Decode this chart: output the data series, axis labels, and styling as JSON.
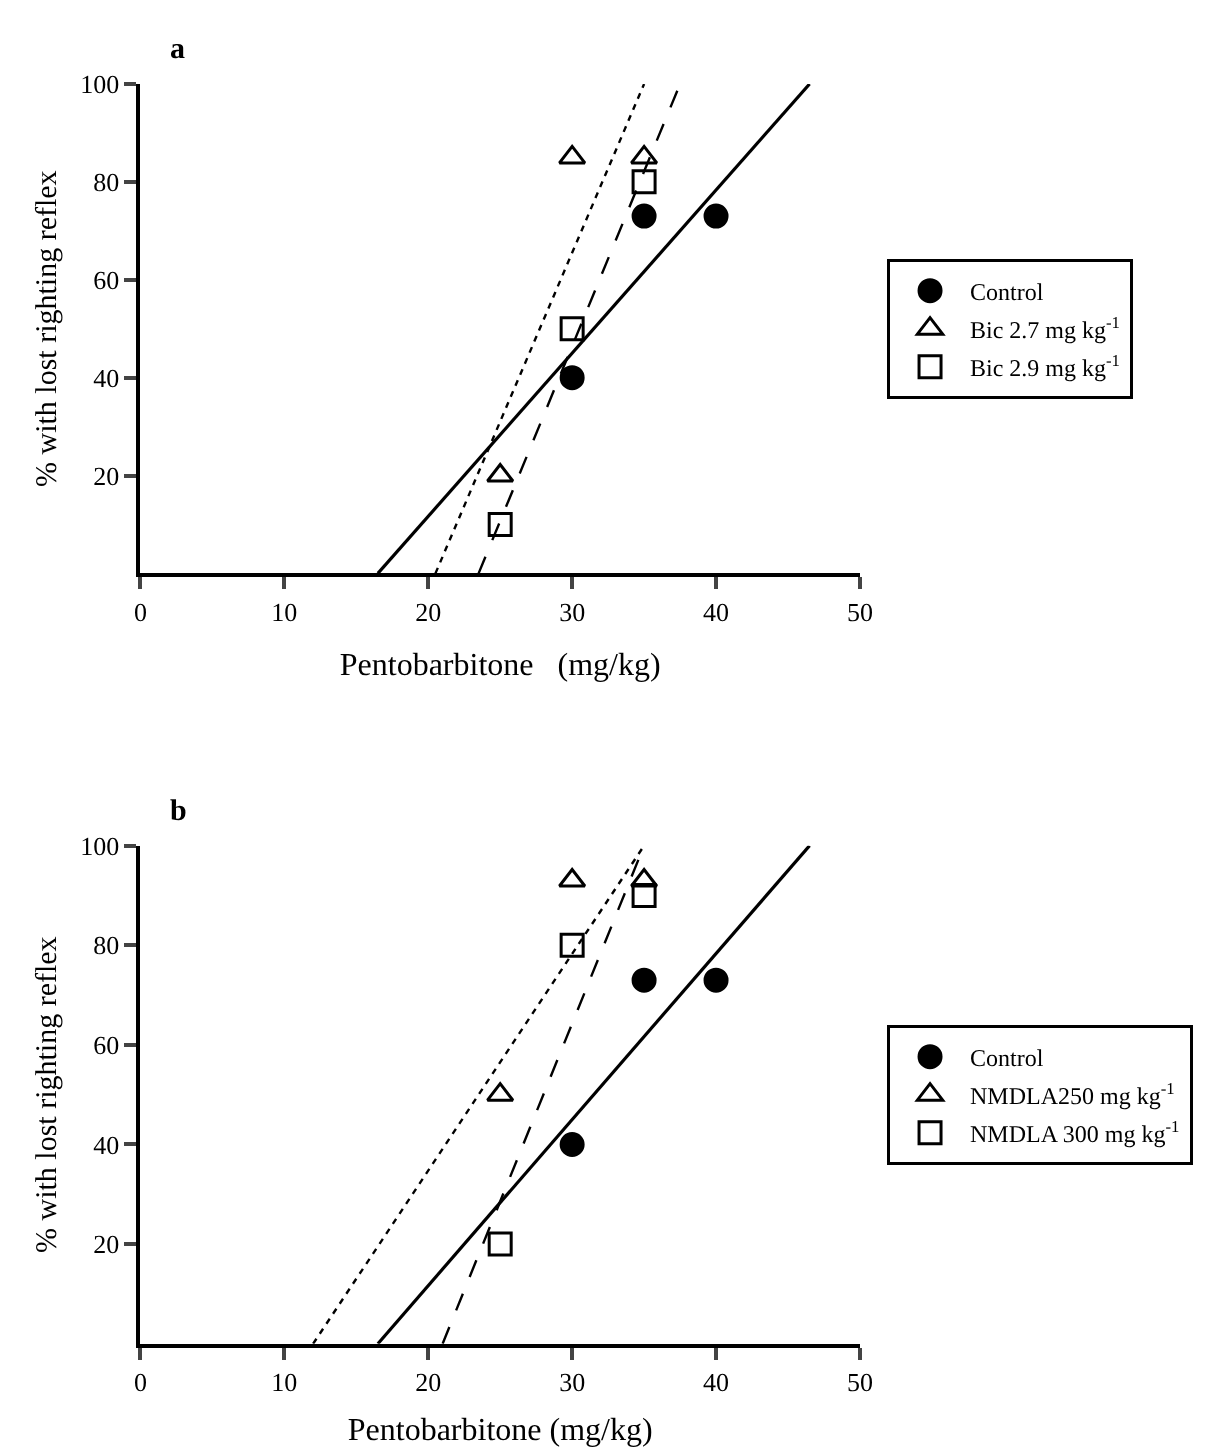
{
  "chart_data": [
    {
      "type": "scatter",
      "title": "a",
      "xlabel": "Pentobarbitone   (mg/kg)",
      "ylabel": "% with lost righting reflex",
      "xlim": [
        0,
        50
      ],
      "ylim": [
        0,
        100
      ],
      "xticks": [
        0,
        10,
        20,
        30,
        40,
        50
      ],
      "yticks": [
        20,
        40,
        60,
        80,
        100
      ],
      "grid": false,
      "legend": "right",
      "series": [
        {
          "type": "line",
          "color": "#000000",
          "marker": "none",
          "line_style": "solid",
          "x": [
            16.5,
            46.5
          ],
          "values": [
            0,
            100
          ]
        },
        {
          "type": "line",
          "color": "#000000",
          "marker": "none",
          "line_style": "dotted",
          "x": [
            20.5,
            35
          ],
          "values": [
            0,
            100
          ]
        },
        {
          "type": "line",
          "color": "#000000",
          "marker": "none",
          "line_style": "dashed",
          "x": [
            23.5,
            37.5
          ],
          "values": [
            0,
            100
          ]
        },
        {
          "name": "Control",
          "color": "#000000",
          "marker": "circle",
          "x": [
            30,
            35,
            40
          ],
          "values": [
            40,
            73,
            73
          ]
        },
        {
          "name": "Bic 2.7 mg kg$^{-1}$",
          "color": "#000000",
          "marker": "triangle",
          "x": [
            25,
            30,
            35
          ],
          "values": [
            20,
            85,
            85
          ]
        },
        {
          "name": "Bic 2.9 mg kg$^{-1}$",
          "color": "#000000",
          "marker": "square",
          "x": [
            25,
            30,
            35
          ],
          "values": [
            10,
            50,
            80
          ]
        }
      ]
    },
    {
      "type": "scatter",
      "title": "b",
      "xlabel": "Pentobarbitone (mg/kg)",
      "ylabel": "% with lost righting reflex",
      "xlim": [
        0,
        50
      ],
      "ylim": [
        0,
        100
      ],
      "xticks": [
        0,
        10,
        20,
        30,
        40,
        50
      ],
      "yticks": [
        20,
        40,
        60,
        80,
        100
      ],
      "grid": false,
      "legend": "right",
      "series": [
        {
          "type": "line",
          "color": "#000000",
          "marker": "none",
          "line_style": "solid",
          "x": [
            16.5,
            46.5
          ],
          "values": [
            0,
            100
          ]
        },
        {
          "type": "line",
          "color": "#000000",
          "marker": "none",
          "line_style": "dotted",
          "x": [
            12,
            35
          ],
          "values": [
            0,
            100
          ]
        },
        {
          "type": "line",
          "color": "#000000",
          "marker": "none",
          "line_style": "dashed",
          "x": [
            21,
            35
          ],
          "values": [
            0,
            100
          ]
        },
        {
          "name": "Control",
          "color": "#000000",
          "marker": "circle",
          "x": [
            30,
            35,
            40
          ],
          "values": [
            40,
            73,
            73
          ]
        },
        {
          "name": "NMDLA250 mg kg$^{-1}$",
          "color": "#000000",
          "marker": "triangle",
          "x": [
            25,
            30,
            35
          ],
          "values": [
            50,
            93,
            93
          ]
        },
        {
          "name": "NMDLA 300 mg kg$^{-1}$",
          "color": "#000000",
          "marker": "square",
          "x": [
            25,
            30,
            35
          ],
          "values": [
            20,
            80,
            90
          ]
        }
      ]
    }
  ]
}
